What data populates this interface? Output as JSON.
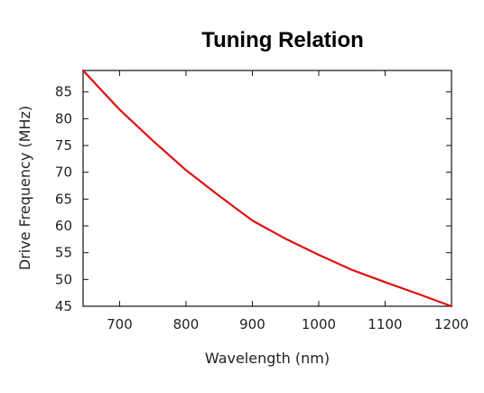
{
  "chart_data": {
    "type": "line",
    "title": "Tuning Relation",
    "xlabel": "Wavelength (nm)",
    "ylabel": "Drive Frequency (MHz)",
    "xlim": [
      645,
      1200
    ],
    "ylim": [
      45,
      89
    ],
    "xticks": [
      700,
      800,
      900,
      1000,
      1100,
      1200
    ],
    "yticks": [
      45,
      50,
      55,
      60,
      65,
      70,
      75,
      80,
      85
    ],
    "grid": false,
    "legend": "none",
    "series": [
      {
        "color": "#e01010",
        "x": [
          645,
          700,
          750,
          800,
          850,
          900,
          950,
          1000,
          1050,
          1100,
          1150,
          1200
        ],
        "y": [
          89.0,
          81.7,
          75.9,
          70.4,
          65.6,
          61.0,
          57.6,
          54.6,
          51.8,
          49.5,
          47.3,
          45.0
        ]
      }
    ]
  }
}
